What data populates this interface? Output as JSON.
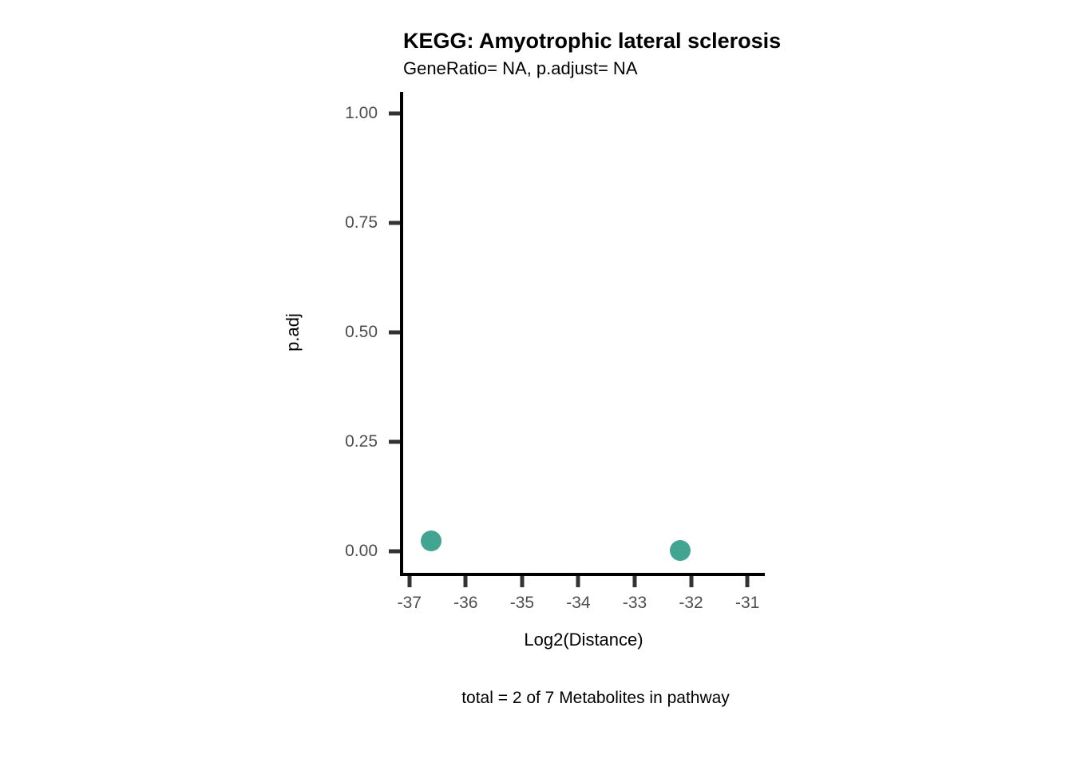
{
  "chart_data": {
    "type": "scatter",
    "title": "KEGG: Amyotrophic lateral sclerosis",
    "subtitle": "GeneRatio= NA, p.adjust= NA",
    "xlabel": "Log2(Distance)",
    "ylabel": "p.adj",
    "caption": "total = 2 of 7 Metabolites in pathway",
    "points": [
      {
        "x": -36.62,
        "y": 0.023
      },
      {
        "x": -32.19,
        "y": 0.002
      }
    ],
    "x_ticks": {
      "values": [
        -37,
        -36,
        -35,
        -34,
        -33,
        -32,
        -31
      ],
      "labels": [
        "-37",
        "-36",
        "-35",
        "-34",
        "-33",
        "-32",
        "-31"
      ]
    },
    "y_ticks": {
      "values": [
        0,
        0.25,
        0.5,
        0.75,
        1
      ],
      "labels": [
        "0.00",
        "0.25",
        "0.50",
        "0.75",
        "1.00"
      ]
    },
    "xlim": [
      -37.11,
      -30.69
    ],
    "ylim": [
      -0.05,
      1.05
    ],
    "grid": false,
    "legend": "none",
    "colors": {
      "point": "#41a591",
      "axis_line": "#000000",
      "tick": "#333333",
      "tick_label": "#4d4d4d",
      "text": "#000000"
    }
  }
}
